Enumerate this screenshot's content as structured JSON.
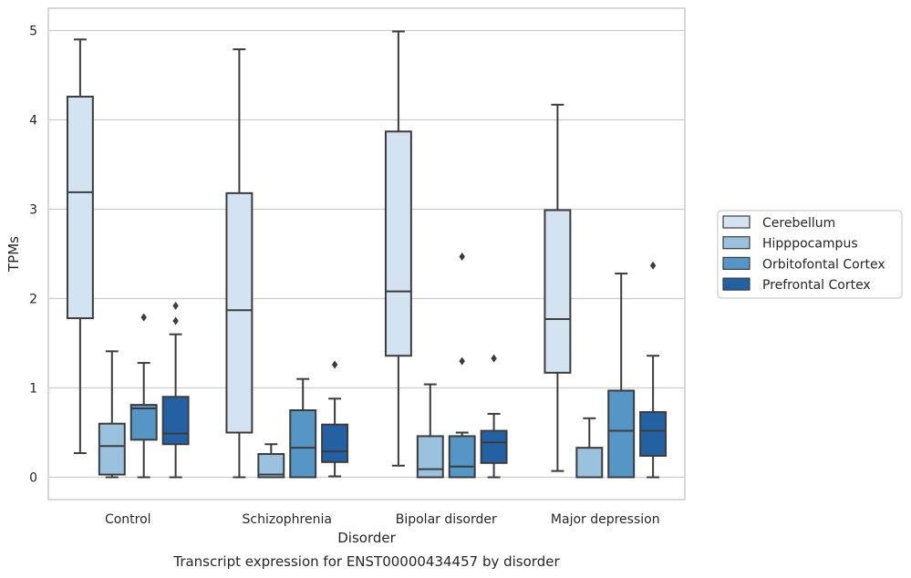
{
  "chart_data": {
    "type": "box",
    "title": "",
    "caption": "Transcript expression for ENST00000434457 by disorder",
    "xlabel": "Disorder",
    "ylabel": "TPMs",
    "ylim": [
      -0.25,
      5.25
    ],
    "yticks": [
      0,
      1,
      2,
      3,
      4,
      5
    ],
    "grid": "horizontal",
    "legend_position": "right",
    "categories": [
      "Control",
      "Schizophrenia",
      "Bipolar disorder",
      "Major depression"
    ],
    "series": [
      {
        "name": "Cerebellum",
        "color": "#d4e3f2",
        "boxes": [
          {
            "whisker_low": 0.27,
            "q1": 1.78,
            "median": 3.19,
            "q3": 4.26,
            "whisker_high": 4.9,
            "outliers": []
          },
          {
            "whisker_low": 0.0,
            "q1": 0.5,
            "median": 1.87,
            "q3": 3.18,
            "whisker_high": 4.79,
            "outliers": []
          },
          {
            "whisker_low": 0.13,
            "q1": 1.36,
            "median": 2.08,
            "q3": 3.87,
            "whisker_high": 4.99,
            "outliers": []
          },
          {
            "whisker_low": 0.07,
            "q1": 1.17,
            "median": 1.77,
            "q3": 2.99,
            "whisker_high": 4.17,
            "outliers": []
          }
        ]
      },
      {
        "name": "Hipppocampus",
        "color": "#9ac2de",
        "boxes": [
          {
            "whisker_low": 0.0,
            "q1": 0.03,
            "median": 0.35,
            "q3": 0.6,
            "whisker_high": 1.41,
            "outliers": []
          },
          {
            "whisker_low": 0.0,
            "q1": 0.0,
            "median": 0.03,
            "q3": 0.26,
            "whisker_high": 0.37,
            "outliers": []
          },
          {
            "whisker_low": 0.0,
            "q1": 0.0,
            "median": 0.09,
            "q3": 0.46,
            "whisker_high": 1.04,
            "outliers": []
          },
          {
            "whisker_low": 0.0,
            "q1": 0.0,
            "median": 0.0,
            "q3": 0.33,
            "whisker_high": 0.66,
            "outliers": []
          }
        ]
      },
      {
        "name": "Orbitofontal Cortex",
        "color": "#5596c7",
        "boxes": [
          {
            "whisker_low": 0.0,
            "q1": 0.42,
            "median": 0.77,
            "q3": 0.81,
            "whisker_high": 1.28,
            "outliers": [
              1.79
            ]
          },
          {
            "whisker_low": 0.0,
            "q1": 0.0,
            "median": 0.33,
            "q3": 0.75,
            "whisker_high": 1.1,
            "outliers": []
          },
          {
            "whisker_low": 0.0,
            "q1": 0.0,
            "median": 0.12,
            "q3": 0.46,
            "whisker_high": 0.5,
            "outliers": [
              1.3,
              2.47
            ]
          },
          {
            "whisker_low": 0.0,
            "q1": 0.0,
            "median": 0.52,
            "q3": 0.97,
            "whisker_high": 2.28,
            "outliers": []
          }
        ]
      },
      {
        "name": "Prefrontal Cortex",
        "color": "#2461a3",
        "boxes": [
          {
            "whisker_low": 0.0,
            "q1": 0.37,
            "median": 0.49,
            "q3": 0.9,
            "whisker_high": 1.6,
            "outliers": [
              1.75,
              1.92
            ]
          },
          {
            "whisker_low": 0.01,
            "q1": 0.17,
            "median": 0.29,
            "q3": 0.59,
            "whisker_high": 0.88,
            "outliers": [
              1.26
            ]
          },
          {
            "whisker_low": 0.0,
            "q1": 0.16,
            "median": 0.39,
            "q3": 0.52,
            "whisker_high": 0.71,
            "outliers": [
              1.33
            ]
          },
          {
            "whisker_low": 0.0,
            "q1": 0.24,
            "median": 0.52,
            "q3": 0.73,
            "whisker_high": 1.36,
            "outliers": [
              2.37
            ]
          }
        ]
      }
    ]
  }
}
